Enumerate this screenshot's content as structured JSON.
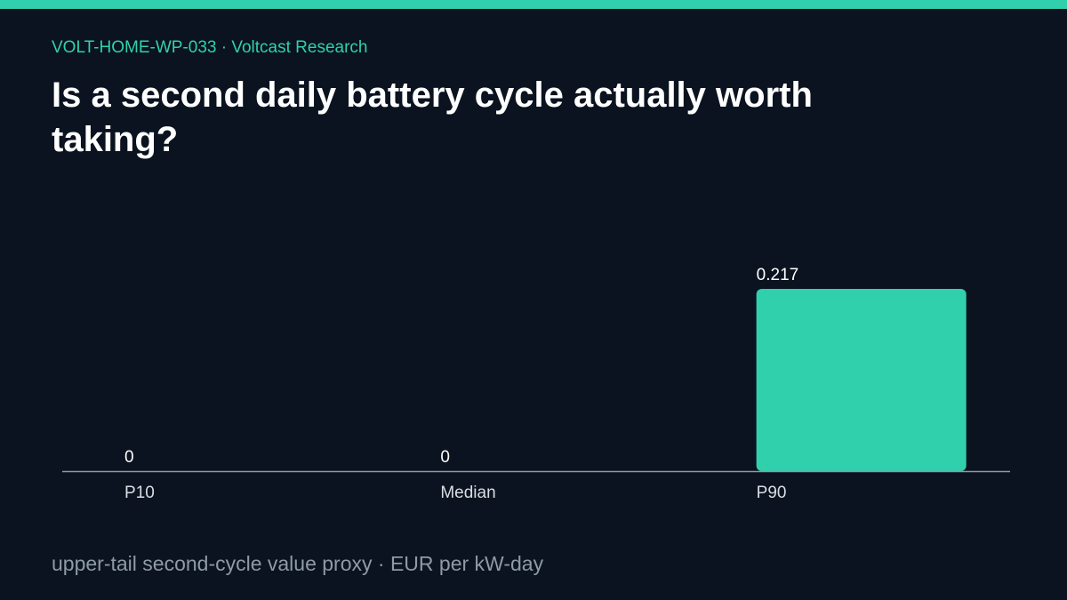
{
  "header": {
    "kicker": "VOLT-HOME-WP-033 · Voltcast Research",
    "title": "Is a second daily battery cycle actually worth taking?"
  },
  "footnote": "upper-tail second-cycle value proxy · EUR per kW-day",
  "colors": {
    "background": "#0a131f",
    "accent": "#31d0ad",
    "axis": "#8f9aa7",
    "label": "#d9dee4",
    "value_label": "#ffffff"
  },
  "chart_data": {
    "type": "bar",
    "categories": [
      "P10",
      "Median",
      "P90"
    ],
    "values": [
      0,
      0,
      0.217
    ],
    "value_labels": [
      "0",
      "0",
      "0.217"
    ],
    "ylim": [
      0,
      0.217
    ],
    "grid": false,
    "legend": "none"
  }
}
